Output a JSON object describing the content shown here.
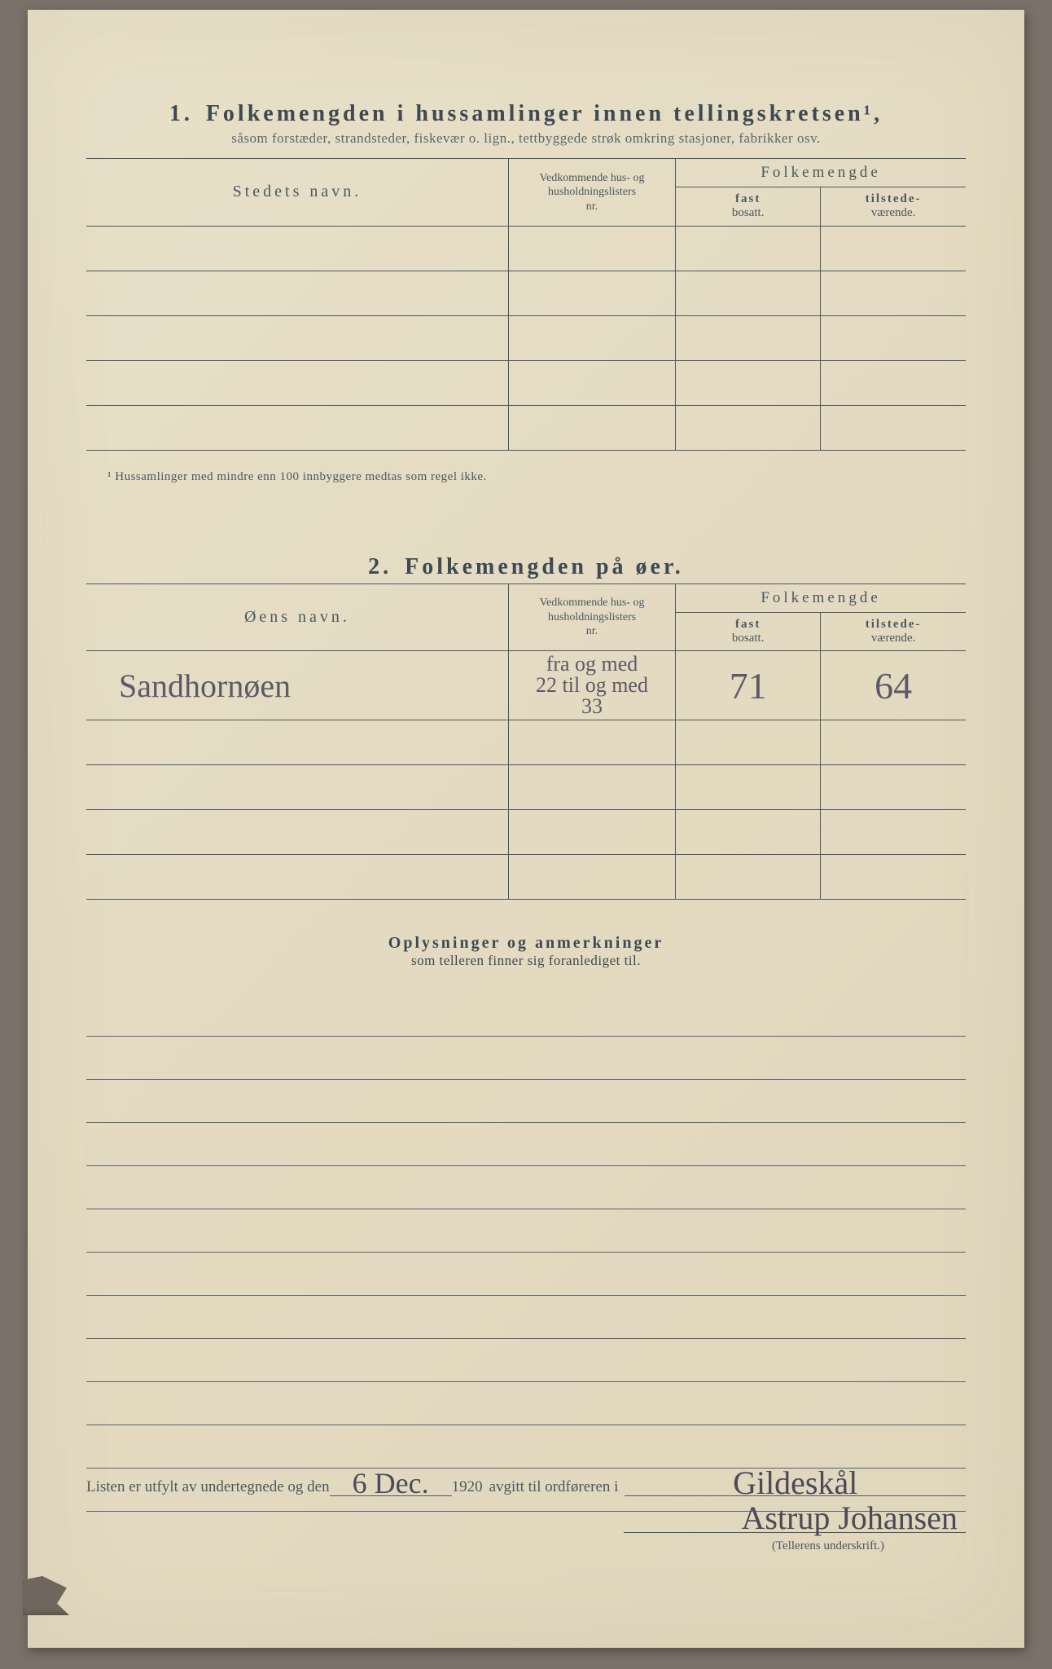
{
  "colors": {
    "paper": "#e4dbc2",
    "ink": "#3d4a52",
    "ink_light": "#5a6870",
    "handwriting": "#5d5a68",
    "frame": "#7a7268"
  },
  "section1": {
    "number": "1.",
    "title": "Folkemengden i hussamlinger innen tellingskretsen¹,",
    "subtitle": "såsom forstæder, strandsteder, fiskevær o. lign., tettbyggede strøk omkring stasjoner, fabrikker osv.",
    "headers": {
      "name": "Stedets navn.",
      "lists_l1": "Vedkommende hus- og",
      "lists_l2": "husholdningslisters",
      "lists_l3": "nr.",
      "folk": "Folkemengde",
      "fast_l1": "fast",
      "fast_l2": "bosatt.",
      "tilstede_l1": "tilstede-",
      "tilstede_l2": "værende."
    },
    "rows": [
      {
        "name": "",
        "lists": "",
        "fast": "",
        "tilstede": ""
      },
      {
        "name": "",
        "lists": "",
        "fast": "",
        "tilstede": ""
      },
      {
        "name": "",
        "lists": "",
        "fast": "",
        "tilstede": ""
      },
      {
        "name": "",
        "lists": "",
        "fast": "",
        "tilstede": ""
      },
      {
        "name": "",
        "lists": "",
        "fast": "",
        "tilstede": ""
      }
    ],
    "footnote": "¹  Hussamlinger med mindre enn 100 innbyggere medtas som regel ikke."
  },
  "section2": {
    "number": "2.",
    "title": "Folkemengden på øer.",
    "headers": {
      "name": "Øens navn.",
      "lists_l1": "Vedkommende hus- og",
      "lists_l2": "husholdningslisters",
      "lists_l3": "nr.",
      "folk": "Folkemengde",
      "fast_l1": "fast",
      "fast_l2": "bosatt.",
      "tilstede_l1": "tilstede-",
      "tilstede_l2": "værende."
    },
    "rows": [
      {
        "name": "Sandhornøen",
        "lists_l1": "fra og med",
        "lists_l2": "22 til og med",
        "lists_l3": "33",
        "fast": "71",
        "tilstede": "64"
      },
      {
        "name": "",
        "lists_l1": "",
        "lists_l2": "",
        "lists_l3": "",
        "fast": "",
        "tilstede": ""
      },
      {
        "name": "",
        "lists_l1": "",
        "lists_l2": "",
        "lists_l3": "",
        "fast": "",
        "tilstede": ""
      },
      {
        "name": "",
        "lists_l1": "",
        "lists_l2": "",
        "lists_l3": "",
        "fast": "",
        "tilstede": ""
      },
      {
        "name": "",
        "lists_l1": "",
        "lists_l2": "",
        "lists_l3": "",
        "fast": "",
        "tilstede": ""
      }
    ]
  },
  "remarks": {
    "title": "Oplysninger og anmerkninger",
    "subtitle": "som telleren finner sig foranlediget til.",
    "line_count": 12
  },
  "signoff": {
    "text_a": "Listen er utfylt av undertegnede og den",
    "date_hw": "6 Dec.",
    "year": "1920",
    "text_b": "avgitt til ordføreren i",
    "place_hw": "Gildeskål",
    "signature_hw": "Astrup Johansen",
    "signature_label": "(Tellerens underskrift.)"
  }
}
